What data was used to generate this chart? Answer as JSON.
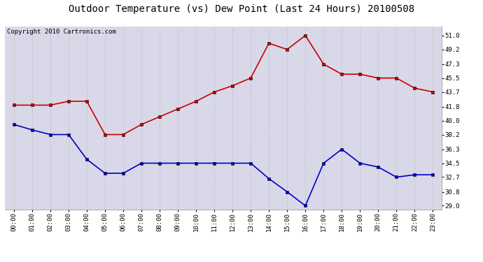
{
  "title": "Outdoor Temperature (vs) Dew Point (Last 24 Hours) 20100508",
  "copyright": "Copyright 2010 Cartronics.com",
  "x_labels": [
    "00:00",
    "01:00",
    "02:00",
    "03:00",
    "04:00",
    "05:00",
    "06:00",
    "07:00",
    "08:00",
    "09:00",
    "10:00",
    "11:00",
    "12:00",
    "13:00",
    "14:00",
    "15:00",
    "16:00",
    "17:00",
    "18:00",
    "19:00",
    "20:00",
    "21:00",
    "22:00",
    "23:00"
  ],
  "temp_data": [
    42.0,
    42.0,
    42.0,
    42.5,
    42.5,
    38.2,
    38.2,
    39.5,
    40.5,
    41.5,
    42.5,
    43.7,
    44.5,
    45.5,
    50.0,
    49.2,
    51.0,
    47.3,
    46.0,
    46.0,
    45.5,
    45.5,
    44.2,
    43.7
  ],
  "dew_data": [
    39.5,
    38.8,
    38.2,
    38.2,
    35.0,
    33.2,
    33.2,
    34.5,
    34.5,
    34.5,
    34.5,
    34.5,
    34.5,
    34.5,
    32.5,
    30.8,
    29.0,
    34.5,
    36.3,
    34.5,
    34.0,
    32.7,
    33.0,
    33.0
  ],
  "y_ticks": [
    29.0,
    30.8,
    32.7,
    34.5,
    36.3,
    38.2,
    40.0,
    41.8,
    43.7,
    45.5,
    47.3,
    49.2,
    51.0
  ],
  "y_min": 28.5,
  "y_max": 52.2,
  "temp_color": "#CC0000",
  "dew_color": "#0000CC",
  "fig_bg_color": "#FFFFFF",
  "plot_bg_color": "#D8D8E8",
  "grid_color": "#BBBBBB",
  "marker": "s",
  "marker_size": 2.5,
  "line_width": 1.2,
  "title_fontsize": 10,
  "copyright_fontsize": 6.5,
  "tick_fontsize": 6.5
}
